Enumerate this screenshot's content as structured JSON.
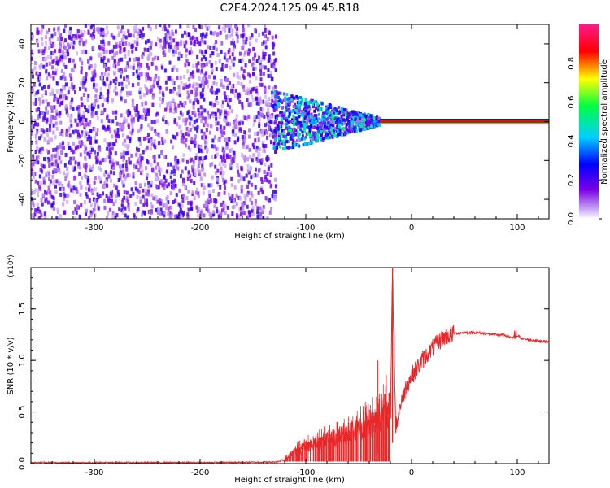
{
  "title": "C2E4.2024.125.09.45.R18",
  "chart_data": [
    {
      "type": "heatmap",
      "xlabel": "Height of straight line (km)",
      "ylabel": "Frequency (Hz)",
      "xlim": [
        -360,
        130
      ],
      "ylim": [
        -50,
        50
      ],
      "x_ticks": [
        -300,
        -200,
        -100,
        0,
        100
      ],
      "y_ticks": [
        -40,
        -20,
        0,
        20,
        40
      ],
      "colorbar": {
        "label": "Normalized spectral amplitude",
        "range": [
          0,
          1
        ],
        "ticks": [
          "0.0",
          "0.2",
          "0.4",
          "0.6",
          "0.8"
        ],
        "colormap": [
          "#ffffff",
          "#7a00e6",
          "#0000ff",
          "#00d0ff",
          "#00ff40",
          "#ffff00",
          "#ff0000",
          "#ff1a8c"
        ]
      },
      "description_regions": [
        {
          "x": [
            -360,
            -130
          ],
          "freq": [
            -50,
            50
          ],
          "level": [
            0.05,
            0.25
          ],
          "pattern": "broadband noise"
        },
        {
          "x": [
            -130,
            -30
          ],
          "freq": [
            -12,
            14
          ],
          "level": [
            0.1,
            0.55
          ],
          "pattern": "converging cluster"
        },
        {
          "x": [
            -30,
            130
          ],
          "freq": [
            0,
            0
          ],
          "level": [
            0.95,
            1.0
          ],
          "pattern": "narrow line"
        }
      ]
    },
    {
      "type": "line",
      "xlabel": "Height of straight line (km)",
      "ylabel": "SNR (10 * v/v)",
      "y_multiplier": "(x10⁴)",
      "xlim": [
        -360,
        130
      ],
      "ylim": [
        0,
        1.9
      ],
      "x_ticks": [
        -300,
        -200,
        -100,
        0,
        100
      ],
      "y_ticks": [
        "0.0",
        "0.5",
        "1.0",
        "1.5"
      ],
      "color": "#e8282a",
      "x": [
        -360,
        -200,
        -130,
        -120,
        -110,
        -100,
        -90,
        -80,
        -70,
        -60,
        -50,
        -40,
        -30,
        -25,
        -20,
        -18,
        -15,
        -10,
        -5,
        0,
        10,
        20,
        30,
        40,
        50,
        60,
        70,
        80,
        90,
        95,
        100,
        105,
        110,
        120,
        130
      ],
      "y": [
        0.01,
        0.01,
        0.015,
        0.03,
        0.09,
        0.13,
        0.15,
        0.18,
        0.2,
        0.23,
        0.26,
        0.3,
        0.33,
        0.45,
        0.32,
        1.9,
        0.35,
        0.6,
        0.75,
        0.85,
        1.0,
        1.12,
        1.22,
        1.26,
        1.27,
        1.27,
        1.26,
        1.25,
        1.24,
        1.22,
        1.24,
        1.21,
        1.2,
        1.19,
        1.18
      ]
    }
  ]
}
